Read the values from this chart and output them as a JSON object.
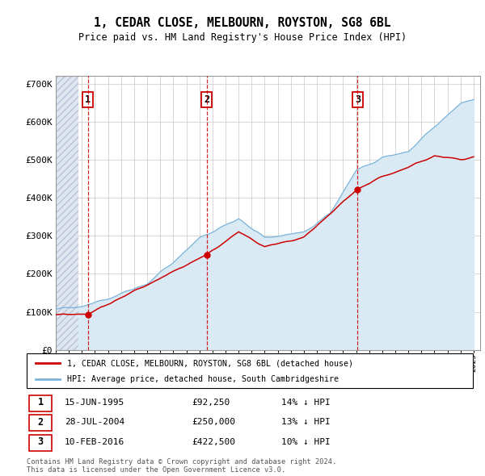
{
  "title": "1, CEDAR CLOSE, MELBOURN, ROYSTON, SG8 6BL",
  "subtitle": "Price paid vs. HM Land Registry's House Price Index (HPI)",
  "sale_dates_year": [
    1995.46,
    2004.57,
    2016.11
  ],
  "sale_prices": [
    92250,
    250000,
    422500
  ],
  "sale_labels": [
    "1",
    "2",
    "3"
  ],
  "hpi_color": "#7ab3d9",
  "price_paid_color": "#cc0000",
  "ylim": [
    0,
    720000
  ],
  "yticks": [
    0,
    100000,
    200000,
    300000,
    400000,
    500000,
    600000,
    700000
  ],
  "ytick_labels": [
    "£0",
    "£100K",
    "£200K",
    "£300K",
    "£400K",
    "£500K",
    "£600K",
    "£700K"
  ],
  "xlim_start": 1993,
  "xlim_end": 2025.5,
  "legend_line1": "1, CEDAR CLOSE, MELBOURN, ROYSTON, SG8 6BL (detached house)",
  "legend_line2": "HPI: Average price, detached house, South Cambridgeshire",
  "table_rows": [
    [
      "1",
      "15-JUN-1995",
      "£92,250",
      "14% ↓ HPI"
    ],
    [
      "2",
      "28-JUL-2004",
      "£250,000",
      "13% ↓ HPI"
    ],
    [
      "3",
      "10-FEB-2016",
      "£422,500",
      "10% ↓ HPI"
    ]
  ],
  "footer": "Contains HM Land Registry data © Crown copyright and database right 2024.\nThis data is licensed under the Open Government Licence v3.0."
}
